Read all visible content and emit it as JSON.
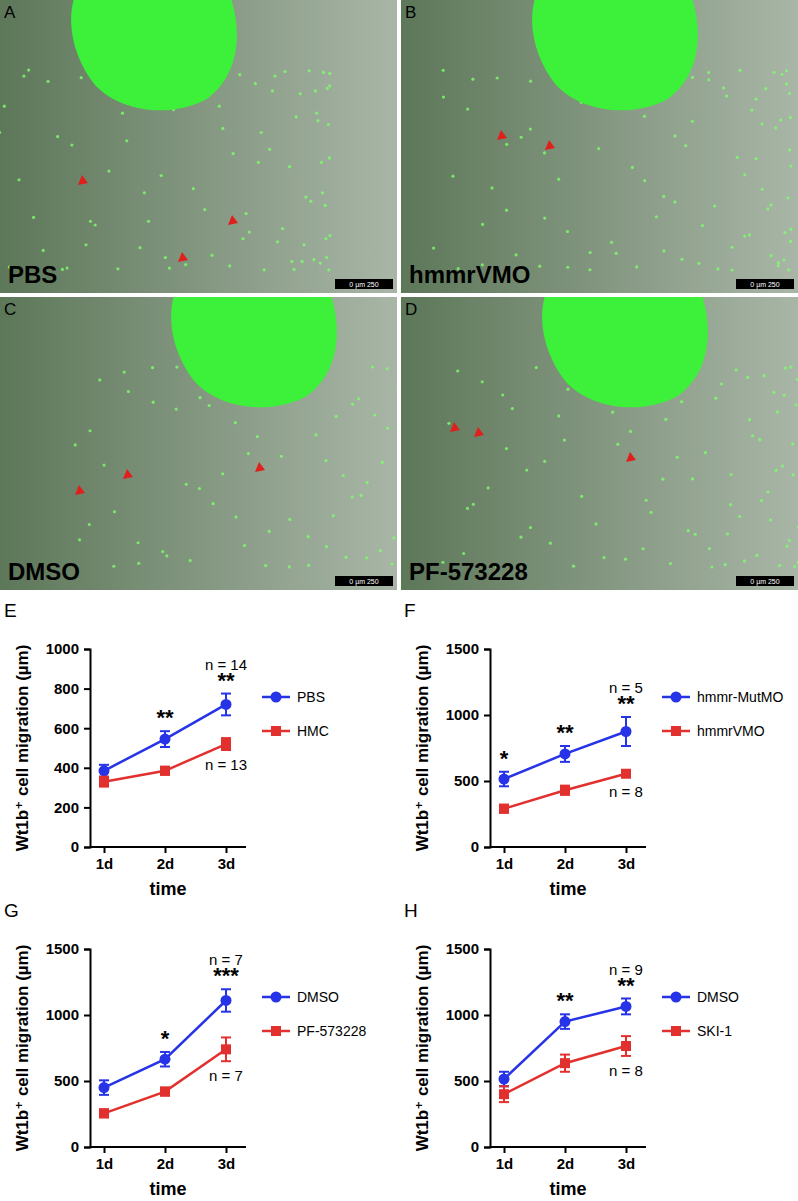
{
  "panels": [
    {
      "letter": "A",
      "label": "PBS",
      "scale_bar": "0 µm 250"
    },
    {
      "letter": "B",
      "label": "hmmrVMO",
      "scale_bar": "0 µm 250"
    },
    {
      "letter": "C",
      "label": "DMSO",
      "scale_bar": "0 µm 250"
    },
    {
      "letter": "D",
      "label": "PF-573228",
      "scale_bar": "0 µm 250"
    }
  ],
  "chart_data": [
    {
      "type": "line",
      "letter": "E",
      "x_label": "time",
      "y_label": "Wt1b⁺ cell migration (µm)",
      "categories": [
        "1d",
        "2d",
        "3d"
      ],
      "ylim": [
        0,
        1000
      ],
      "yticks": [
        0,
        200,
        400,
        600,
        800,
        1000
      ],
      "series": [
        {
          "name": "PBS",
          "color": "#2633e6",
          "marker": "circle",
          "values": [
            385,
            545,
            720
          ],
          "errors": [
            30,
            40,
            55
          ]
        },
        {
          "name": "HMC",
          "color": "#e2302e",
          "marker": "square",
          "values": [
            330,
            385,
            520
          ],
          "errors": [
            25,
            20,
            30
          ]
        }
      ],
      "significance": [
        {
          "category": "2d",
          "text": "**"
        },
        {
          "category": "3d",
          "text": "**"
        }
      ],
      "n_labels": [
        "n = 14",
        "n = 13"
      ]
    },
    {
      "type": "line",
      "letter": "F",
      "x_label": "time",
      "y_label": "Wt1b⁺ cell migration (µm)",
      "categories": [
        "1d",
        "2d",
        "3d"
      ],
      "ylim": [
        0,
        1500
      ],
      "yticks": [
        0,
        500,
        1000,
        1500
      ],
      "series": [
        {
          "name": "hmmr-MutMO",
          "color": "#2633e6",
          "marker": "circle",
          "values": [
            515,
            705,
            875
          ],
          "errors": [
            55,
            60,
            110
          ]
        },
        {
          "name": "hmmrVMO",
          "color": "#e2302e",
          "marker": "square",
          "values": [
            290,
            430,
            555
          ],
          "errors": [
            30,
            35,
            25
          ]
        }
      ],
      "significance": [
        {
          "category": "1d",
          "text": "*"
        },
        {
          "category": "2d",
          "text": "**"
        },
        {
          "category": "3d",
          "text": "**"
        }
      ],
      "n_labels": [
        "n = 5",
        "n = 8"
      ]
    },
    {
      "type": "line",
      "letter": "G",
      "x_label": "time",
      "y_label": "Wt1b⁺ cell migration (µm)",
      "categories": [
        "1d",
        "2d",
        "3d"
      ],
      "ylim": [
        0,
        1500
      ],
      "yticks": [
        0,
        500,
        1000,
        1500
      ],
      "series": [
        {
          "name": "DMSO",
          "color": "#2633e6",
          "marker": "circle",
          "values": [
            450,
            665,
            1110
          ],
          "errors": [
            55,
            55,
            85
          ]
        },
        {
          "name": "PF-573228",
          "color": "#e2302e",
          "marker": "square",
          "values": [
            255,
            420,
            740
          ],
          "errors": [
            30,
            30,
            90
          ]
        }
      ],
      "significance": [
        {
          "category": "2d",
          "text": "*"
        },
        {
          "category": "3d",
          "text": "***"
        }
      ],
      "n_labels": [
        "n = 7",
        "n = 7"
      ]
    },
    {
      "type": "line",
      "letter": "H",
      "x_label": "time",
      "y_label": "Wt1b⁺ cell migration (µm)",
      "categories": [
        "1d",
        "2d",
        "3d"
      ],
      "ylim": [
        0,
        1500
      ],
      "yticks": [
        0,
        500,
        1000,
        1500
      ],
      "series": [
        {
          "name": "DMSO",
          "color": "#2633e6",
          "marker": "circle",
          "values": [
            515,
            950,
            1065
          ],
          "errors": [
            55,
            55,
            60
          ]
        },
        {
          "name": "SKI-1",
          "color": "#e2302e",
          "marker": "square",
          "values": [
            400,
            635,
            765
          ],
          "errors": [
            60,
            65,
            75
          ]
        }
      ],
      "significance": [
        {
          "category": "2d",
          "text": "**"
        },
        {
          "category": "3d",
          "text": "**"
        }
      ],
      "n_labels": [
        "n = 9",
        "n = 8"
      ]
    }
  ]
}
